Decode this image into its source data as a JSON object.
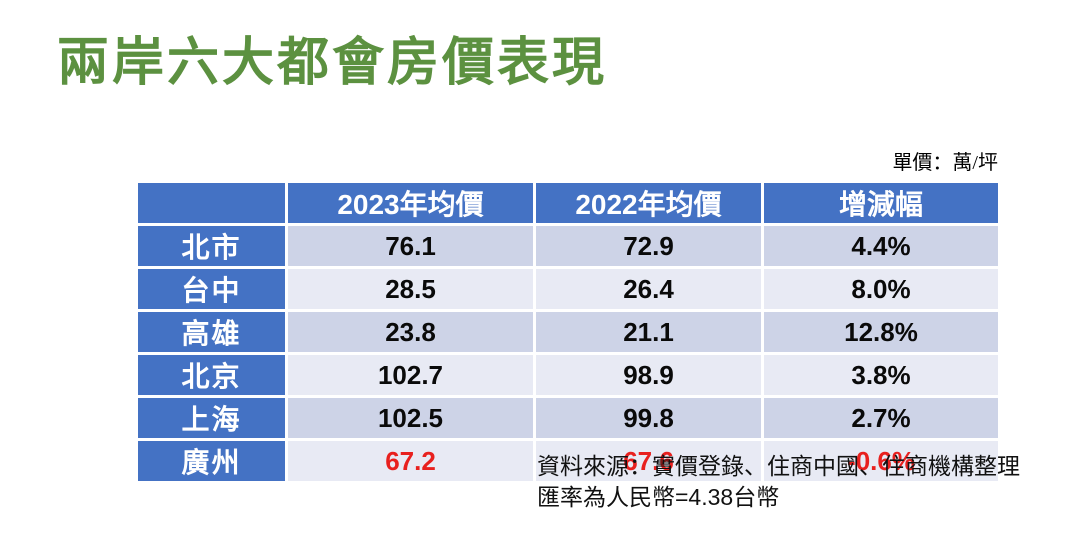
{
  "title": "兩岸六大都會房價表現",
  "unit_note": "單價：萬/坪",
  "table": {
    "headers": [
      "",
      "2023年均價",
      "2022年均價",
      "增減幅"
    ],
    "rows": [
      {
        "city": "北市",
        "avg_2023": "76.1",
        "avg_2022": "72.9",
        "change": "4.4%"
      },
      {
        "city": "台中",
        "avg_2023": "28.5",
        "avg_2022": "26.4",
        "change": "8.0%"
      },
      {
        "city": "高雄",
        "avg_2023": "23.8",
        "avg_2022": "21.1",
        "change": "12.8%"
      },
      {
        "city": "北京",
        "avg_2023": "102.7",
        "avg_2022": "98.9",
        "change": "3.8%"
      },
      {
        "city": "上海",
        "avg_2023": "102.5",
        "avg_2022": "99.8",
        "change": "2.7%"
      },
      {
        "city": "廣州",
        "avg_2023": "67.2",
        "avg_2022": "67.6",
        "change": "-0.6%",
        "negative": true
      }
    ]
  },
  "source_note": {
    "line1": "資料來源：實價登錄、住商中國、住商機構整理",
    "line2": "匯率為人民幣=4.38台幣"
  },
  "colors": {
    "title_green": "#5c9140",
    "header_blue": "#4472c4",
    "band_dark": "#cdd3e7",
    "band_light": "#e8eaf4",
    "negative_red": "#e8201e"
  },
  "chart_data": {
    "type": "table",
    "title": "兩岸六大都會房價表現",
    "unit": "萬/坪",
    "categories": [
      "北市",
      "台中",
      "高雄",
      "北京",
      "上海",
      "廣州"
    ],
    "series": [
      {
        "name": "2023年均價",
        "values": [
          76.1,
          28.5,
          23.8,
          102.7,
          102.5,
          67.2
        ]
      },
      {
        "name": "2022年均價",
        "values": [
          72.9,
          26.4,
          21.1,
          98.9,
          99.8,
          67.6
        ]
      },
      {
        "name": "增減幅(%)",
        "values": [
          4.4,
          8.0,
          12.8,
          3.8,
          2.7,
          -0.6
        ]
      }
    ],
    "source": "資料來源：實價登錄、住商中國、住商機構整理；匯率為人民幣=4.38台幣"
  }
}
